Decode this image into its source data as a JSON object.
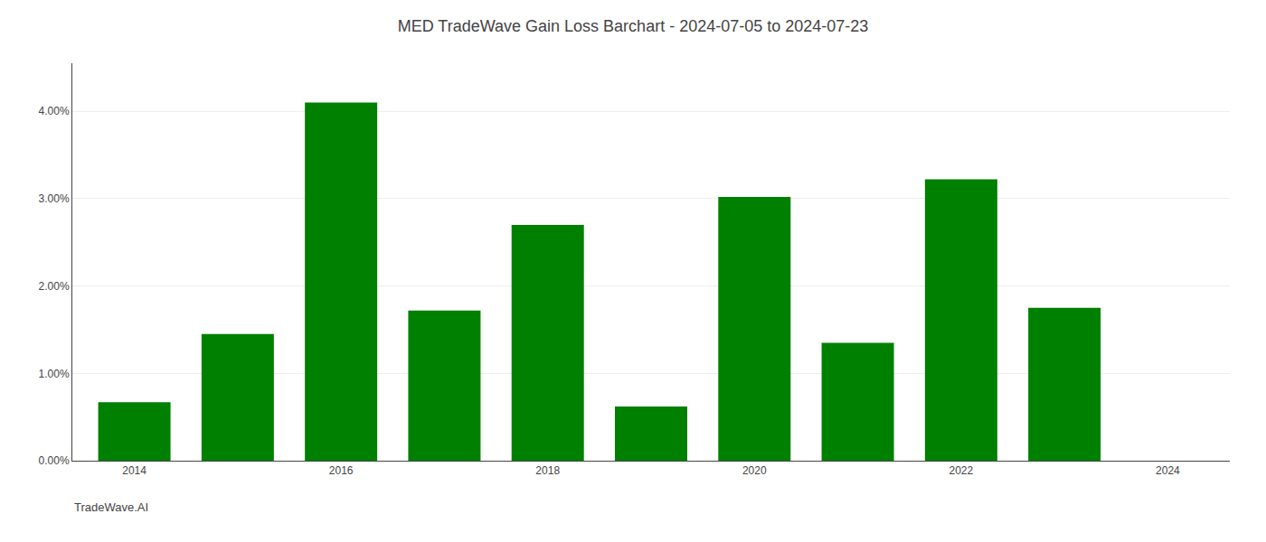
{
  "chart_data": {
    "type": "bar",
    "title": "MED TradeWave Gain Loss Barchart - 2024-07-05 to 2024-07-23",
    "annotations": [
      "TradeWave.AI"
    ],
    "x": [
      2014,
      2015,
      2016,
      2017,
      2018,
      2019,
      2020,
      2021,
      2022,
      2023
    ],
    "values": [
      0.0067,
      0.0145,
      0.041,
      0.0172,
      0.027,
      0.0062,
      0.0302,
      0.0135,
      0.0322,
      0.0175
    ],
    "color": "#008000",
    "xlim": [
      2013.4,
      2024.6
    ],
    "xticks": [
      2014,
      2016,
      2018,
      2020,
      2022,
      2024
    ],
    "ylim": [
      0.0,
      0.0455
    ],
    "yticks": [
      {
        "value": 0.0,
        "label": "0.00%"
      },
      {
        "value": 0.01,
        "label": "1.00%"
      },
      {
        "value": 0.02,
        "label": "2.00%"
      },
      {
        "value": 0.03,
        "label": "3.00%"
      },
      {
        "value": 0.04,
        "label": "4.00%"
      }
    ],
    "grid": true
  }
}
